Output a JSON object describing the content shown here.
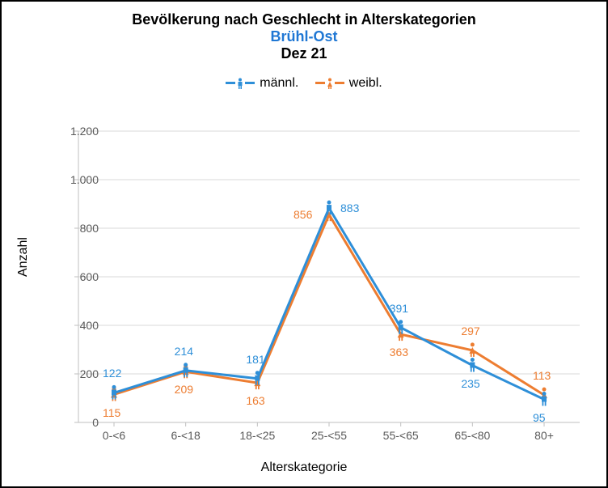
{
  "title_main": "Bevölkerung nach Geschlecht in Alterskategorien",
  "title_sub": "Brühl-Ost",
  "title_date": "Dez 21",
  "legend": {
    "male_label": "männl.",
    "female_label": "weibl."
  },
  "y_axis": {
    "label": "Anzahl",
    "min": 0,
    "max": 1200,
    "step": 200,
    "ticks": [
      "0",
      "200",
      "400",
      "600",
      "800",
      "1.000",
      "1.200"
    ]
  },
  "x_axis": {
    "label": "Alterskategorie",
    "categories": [
      "0-<6",
      "6-<18",
      "18-<25",
      "25-<55",
      "55-<65",
      "65-<80",
      "80+"
    ]
  },
  "series": {
    "male": {
      "color": "#2e8fd8",
      "values": [
        122,
        214,
        181,
        883,
        391,
        235,
        95
      ],
      "label_positions": [
        "above",
        "above",
        "above",
        "right",
        "above",
        "below",
        "below"
      ]
    },
    "female": {
      "color": "#ed7d31",
      "values": [
        115,
        209,
        163,
        856,
        363,
        297,
        113
      ],
      "label_positions": [
        "below",
        "below",
        "below",
        "left",
        "below",
        "above",
        "above"
      ]
    }
  },
  "style": {
    "grid_color": "#d9d9d9",
    "axis_color": "#bfbfbf",
    "tick_color": "#595959",
    "line_width": 3,
    "plot_bg": "#ffffff"
  }
}
